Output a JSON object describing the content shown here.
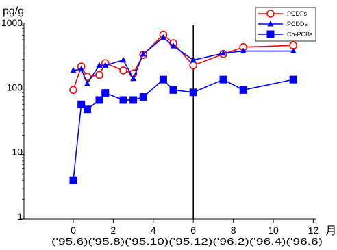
{
  "chart_data": {
    "type": "line",
    "ylabel": "pg/g",
    "xunit": "月",
    "yscale": "log",
    "ylim": [
      1,
      1000
    ],
    "xlim": [
      -1,
      12
    ],
    "y_ticks": [
      {
        "value": 1,
        "label": "1"
      },
      {
        "value": 10,
        "label": "10"
      },
      {
        "value": 100,
        "label": "100"
      },
      {
        "value": 1000,
        "label": "1000"
      }
    ],
    "x_ticks": [
      {
        "value": 0,
        "label": "0"
      },
      {
        "value": 2,
        "label": "2"
      },
      {
        "value": 4,
        "label": "4"
      },
      {
        "value": 6,
        "label": "6"
      },
      {
        "value": 8,
        "label": "8"
      },
      {
        "value": 10,
        "label": "10"
      },
      {
        "value": 12,
        "label": "12"
      }
    ],
    "date_labels": "('95.6)('95.8)('95.10)('95.12)('96.2)('96.4)('96.6)",
    "reference_line_x": 6,
    "legend_position": "top-right",
    "series": [
      {
        "name": "PCDFs",
        "color": "#ff0000",
        "marker": "circle",
        "x": [
          0,
          0.4,
          0.7,
          1.3,
          1.6,
          2.5,
          3.0,
          3.5,
          4.5,
          5.0,
          6.0,
          7.5,
          8.5,
          11.0
        ],
        "y": [
          100,
          230,
          160,
          170,
          260,
          200,
          180,
          350,
          720,
          530,
          240,
          360,
          460,
          490
        ]
      },
      {
        "name": "PCDDs",
        "color": "#0000ff",
        "marker": "triangle",
        "x": [
          0,
          0.4,
          0.7,
          1.3,
          1.6,
          2.5,
          3.0,
          3.5,
          4.5,
          5.0,
          6.0,
          7.5,
          8.5,
          11.0
        ],
        "y": [
          200,
          210,
          125,
          240,
          240,
          290,
          150,
          360,
          650,
          480,
          290,
          370,
          400,
          400
        ]
      },
      {
        "name": "Co-PCBs",
        "color": "#0000ff",
        "marker": "square",
        "x": [
          0,
          0.4,
          0.7,
          1.3,
          1.6,
          2.5,
          3.0,
          3.5,
          4.5,
          5.0,
          6.0,
          7.5,
          8.5,
          11.0
        ],
        "y": [
          4,
          60,
          50,
          70,
          90,
          70,
          70,
          78,
          145,
          100,
          92,
          145,
          100,
          145
        ]
      }
    ]
  }
}
